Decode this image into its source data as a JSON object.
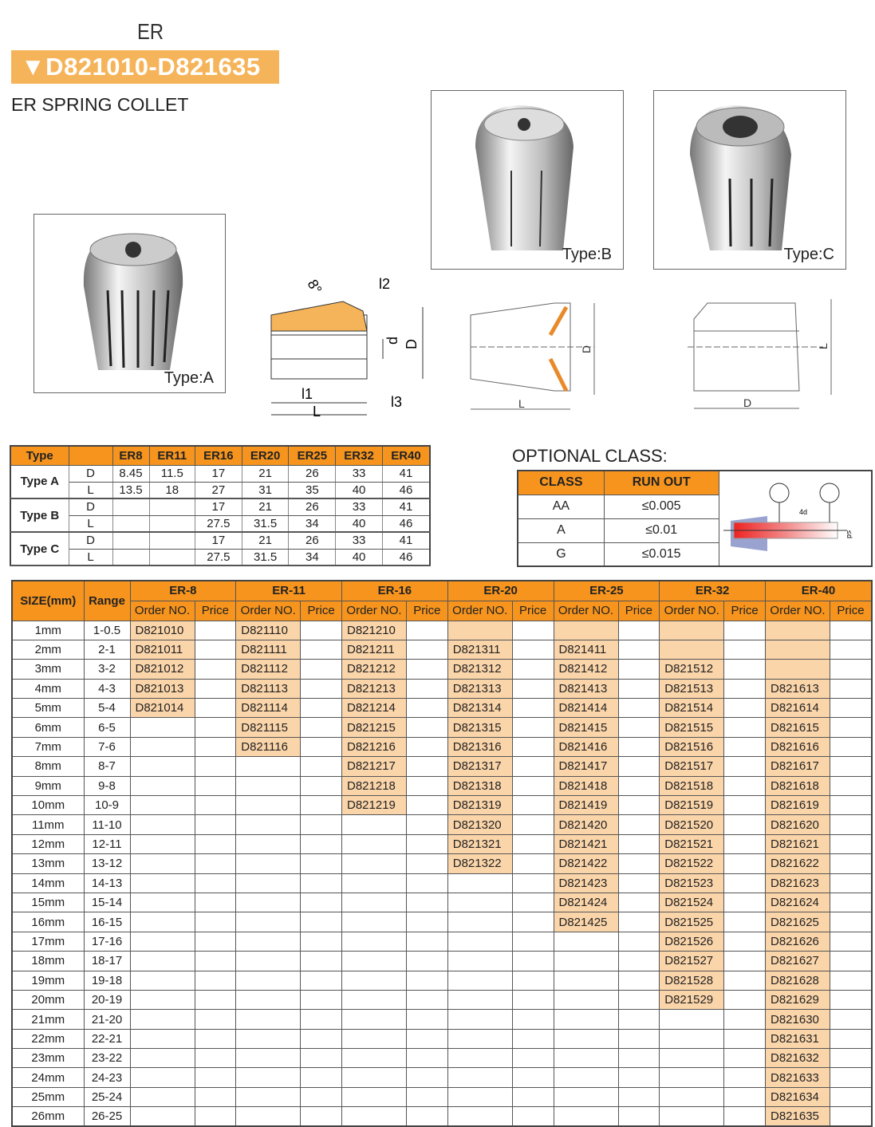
{
  "header": {
    "er": "ER",
    "code_range": "▼D821010-D821635",
    "title": "ER SPRING COLLET"
  },
  "photos": [
    {
      "label": "Type:A"
    },
    {
      "label": "Type:B"
    },
    {
      "label": "Type:C"
    }
  ],
  "diagram_labels": {
    "angle": "8°",
    "l2": "l2",
    "d": "d",
    "D": "D",
    "l1": "l1",
    "L": "L",
    "l3": "l3"
  },
  "spec_table": {
    "headers": [
      "Type",
      "",
      "ER8",
      "ER11",
      "ER16",
      "ER20",
      "ER25",
      "ER32",
      "ER40"
    ],
    "groups": [
      {
        "type": "Type A",
        "rows": [
          {
            "dim": "D",
            "values": [
              "8.45",
              "11.5",
              "17",
              "21",
              "26",
              "33",
              "41"
            ]
          },
          {
            "dim": "L",
            "values": [
              "13.5",
              "18",
              "27",
              "31",
              "35",
              "40",
              "46"
            ]
          }
        ]
      },
      {
        "type": "Type B",
        "rows": [
          {
            "dim": "D",
            "values": [
              "",
              "",
              "17",
              "21",
              "26",
              "33",
              "41"
            ]
          },
          {
            "dim": "L",
            "values": [
              "",
              "",
              "27.5",
              "31.5",
              "34",
              "40",
              "46"
            ]
          }
        ]
      },
      {
        "type": "Type C",
        "rows": [
          {
            "dim": "D",
            "values": [
              "",
              "",
              "17",
              "21",
              "26",
              "33",
              "41"
            ]
          },
          {
            "dim": "L",
            "values": [
              "",
              "",
              "27.5",
              "31.5",
              "34",
              "40",
              "46"
            ]
          }
        ]
      }
    ]
  },
  "optional_class": {
    "title": "OPTIONAL CLASS:",
    "headers": [
      "CLASS",
      "RUN OUT"
    ],
    "rows": [
      [
        "AA",
        "≤0.005"
      ],
      [
        "A",
        "≤0.01"
      ],
      [
        "G",
        "≤0.015"
      ]
    ],
    "diagram_labels": {
      "distance": "4d",
      "diameter": "≤d"
    }
  },
  "order_table": {
    "size_header": "SIZE(mm)",
    "range_header": "Range",
    "order_header": "Order NO.",
    "price_header": "Price",
    "series": [
      {
        "name": "ER-8",
        "base": 10,
        "prefix": "D8210",
        "first": 1,
        "last": 5,
        "peach_from": 1
      },
      {
        "name": "ER-11",
        "base": 10,
        "prefix": "D8211",
        "first": 1,
        "last": 7,
        "peach_from": 1
      },
      {
        "name": "ER-16",
        "base": 10,
        "prefix": "D8212",
        "first": 1,
        "last": 10,
        "peach_from": 1
      },
      {
        "name": "ER-20",
        "base": 10,
        "prefix": "D8213",
        "first": 2,
        "last": 13,
        "peach_from": 1
      },
      {
        "name": "ER-25",
        "base": 10,
        "prefix": "D8214",
        "first": 2,
        "last": 16,
        "peach_from": 1
      },
      {
        "name": "ER-32",
        "base": 10,
        "prefix": "D8215",
        "first": 3,
        "last": 20,
        "peach_from": 1
      },
      {
        "name": "ER-40",
        "base": 10,
        "prefix": "D8216",
        "first": 4,
        "last": 26,
        "peach_from": 1
      }
    ],
    "sizes": [
      "1mm",
      "2mm",
      "3mm",
      "4mm",
      "5mm",
      "6mm",
      "7mm",
      "8mm",
      "9mm",
      "10mm",
      "11mm",
      "12mm",
      "13mm",
      "14mm",
      "15mm",
      "16mm",
      "17mm",
      "18mm",
      "19mm",
      "20mm",
      "21mm",
      "22mm",
      "23mm",
      "24mm",
      "25mm",
      "26mm"
    ],
    "ranges": [
      "1-0.5",
      "2-1",
      "3-2",
      "4-3",
      "5-4",
      "6-5",
      "7-6",
      "8-7",
      "9-8",
      "10-9",
      "11-10",
      "12-11",
      "13-12",
      "14-13",
      "15-14",
      "16-15",
      "17-16",
      "18-17",
      "19-18",
      "20-19",
      "21-20",
      "22-21",
      "23-22",
      "24-23",
      "25-24",
      "26-25"
    ]
  },
  "colors": {
    "orange": "#f6941e",
    "peach": "#fbd5aa",
    "banner": "#f6b45a"
  }
}
